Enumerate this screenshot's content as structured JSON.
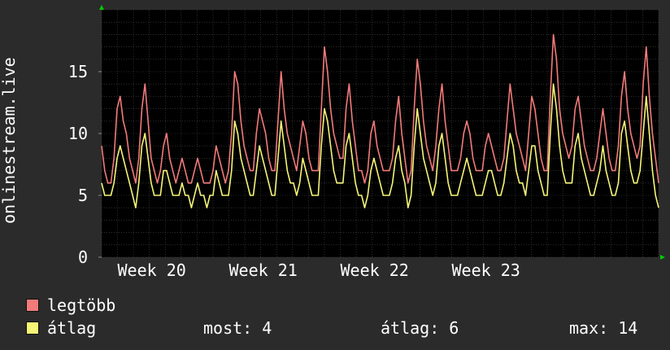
{
  "chart_data": {
    "type": "line",
    "ylabel": "onlinestream.live",
    "ylim": [
      0,
      20
    ],
    "yticks": [
      0,
      5,
      10,
      15
    ],
    "xticks": [
      "Week 20",
      "Week 21",
      "Week 22",
      "Week 23"
    ],
    "grid": true,
    "legend_position": "bottom-left",
    "series": [
      {
        "name": "legtöbb",
        "color": "#f27a7a",
        "values": [
          9,
          7,
          6,
          6,
          8,
          12,
          13,
          11,
          10,
          8,
          7,
          6,
          8,
          12,
          14,
          11,
          8,
          7,
          6,
          7,
          9,
          10,
          8,
          7,
          6,
          7,
          8,
          7,
          6,
          6,
          7,
          8,
          7,
          6,
          6,
          6,
          7,
          9,
          8,
          7,
          6,
          7,
          10,
          15,
          14,
          11,
          9,
          8,
          7,
          7,
          10,
          12,
          11,
          10,
          8,
          7,
          7,
          11,
          15,
          12,
          10,
          9,
          8,
          7,
          9,
          11,
          10,
          8,
          7,
          7,
          7,
          12,
          17,
          15,
          12,
          10,
          9,
          8,
          8,
          12,
          14,
          11,
          9,
          7,
          7,
          6,
          7,
          10,
          11,
          9,
          8,
          7,
          7,
          7,
          8,
          11,
          13,
          10,
          8,
          6,
          7,
          12,
          16,
          14,
          11,
          9,
          8,
          7,
          9,
          12,
          14,
          11,
          9,
          7,
          7,
          7,
          8,
          10,
          11,
          10,
          8,
          7,
          7,
          7,
          9,
          10,
          9,
          8,
          7,
          7,
          8,
          11,
          14,
          12,
          10,
          9,
          8,
          7,
          10,
          13,
          12,
          10,
          8,
          7,
          7,
          13,
          18,
          16,
          12,
          10,
          9,
          8,
          9,
          12,
          13,
          11,
          9,
          8,
          7,
          7,
          8,
          10,
          12,
          10,
          8,
          7,
          7,
          9,
          13,
          15,
          12,
          10,
          9,
          8,
          9,
          14,
          17,
          13,
          10,
          8,
          6
        ]
      },
      {
        "name": "átlag",
        "color": "#f5f577",
        "values": [
          6,
          5,
          5,
          5,
          6,
          8,
          9,
          8,
          7,
          6,
          5,
          4,
          6,
          9,
          10,
          8,
          6,
          5,
          5,
          5,
          7,
          7,
          6,
          5,
          5,
          5,
          6,
          5,
          5,
          4,
          5,
          6,
          5,
          5,
          4,
          5,
          5,
          7,
          6,
          5,
          5,
          5,
          7,
          11,
          10,
          8,
          7,
          6,
          5,
          5,
          7,
          9,
          8,
          7,
          6,
          5,
          5,
          8,
          11,
          9,
          7,
          6,
          6,
          5,
          6,
          8,
          7,
          6,
          5,
          5,
          5,
          9,
          12,
          11,
          9,
          7,
          6,
          6,
          6,
          9,
          10,
          8,
          6,
          5,
          5,
          4,
          5,
          7,
          8,
          7,
          6,
          5,
          5,
          5,
          6,
          8,
          9,
          7,
          6,
          4,
          5,
          9,
          12,
          10,
          8,
          7,
          6,
          5,
          6,
          9,
          10,
          8,
          6,
          5,
          5,
          5,
          6,
          7,
          8,
          7,
          6,
          5,
          5,
          5,
          6,
          7,
          7,
          6,
          5,
          5,
          6,
          8,
          10,
          9,
          7,
          6,
          6,
          5,
          7,
          9,
          9,
          7,
          6,
          5,
          5,
          10,
          14,
          12,
          9,
          7,
          6,
          6,
          6,
          9,
          10,
          8,
          7,
          6,
          5,
          5,
          6,
          7,
          9,
          7,
          6,
          5,
          5,
          6,
          10,
          11,
          9,
          7,
          6,
          6,
          7,
          10,
          13,
          10,
          7,
          5,
          4
        ]
      }
    ]
  },
  "legend": {
    "items": [
      {
        "label": "legtöbb",
        "color": "#f27a7a"
      },
      {
        "label": "átlag",
        "color": "#f5f577"
      }
    ],
    "stats": {
      "most": "most: 4",
      "atlag": "átlag: 6",
      "max": "max: 14"
    }
  }
}
